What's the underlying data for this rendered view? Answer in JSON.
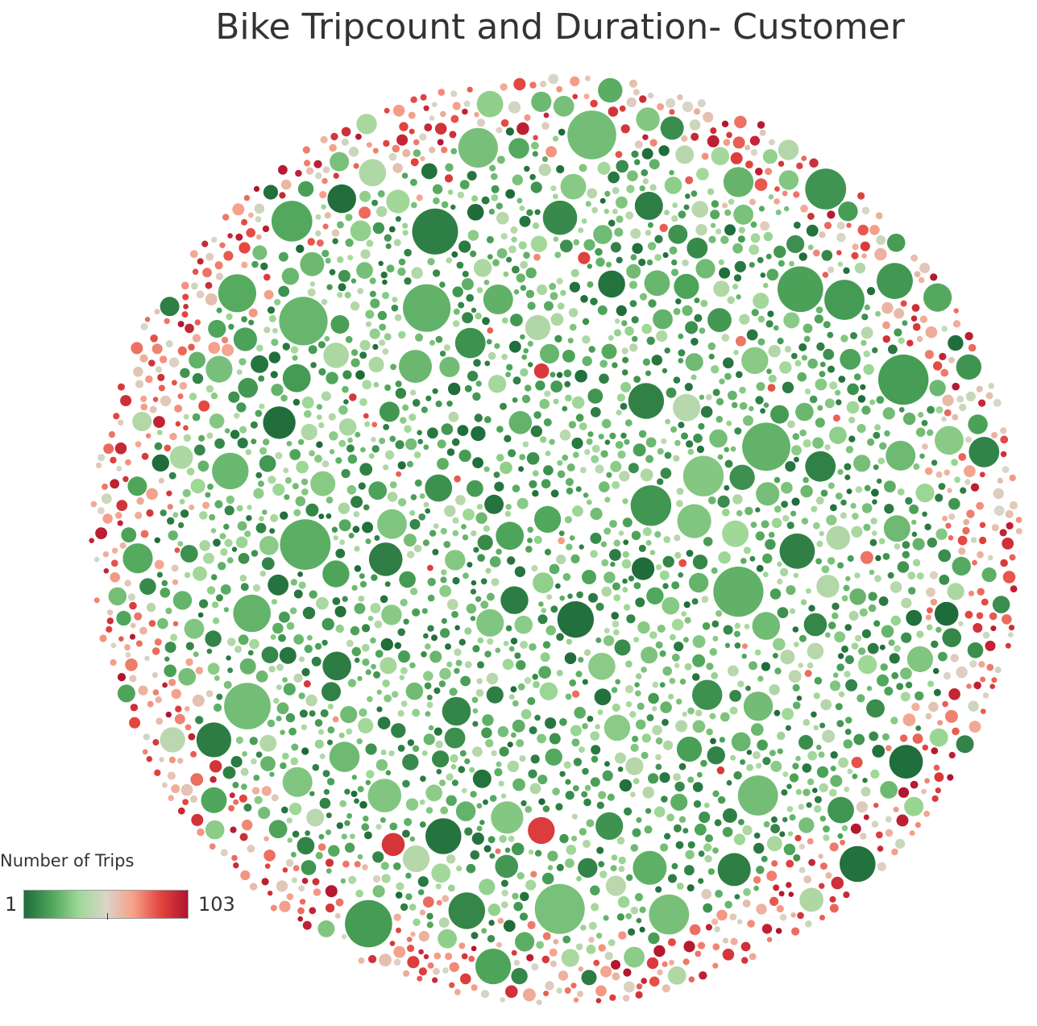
{
  "chart_data": {
    "type": "packed-bubble",
    "title": "Bike Tripcount and Duration- Customer",
    "color_legend": {
      "title": "Number of Trips",
      "min": 1,
      "max": 103,
      "min_label": "1",
      "max_label": "103",
      "palette": [
        "#1e6b3a",
        "#4ea55a",
        "#9ed896",
        "#d9d6c9",
        "#f6a08a",
        "#e3453f",
        "#b0132e"
      ]
    },
    "bubble_count_approx": 2600,
    "notes_visible": "bubble size encodes duration; color encodes number of trips (mostly green, red toward the outer ring)"
  }
}
